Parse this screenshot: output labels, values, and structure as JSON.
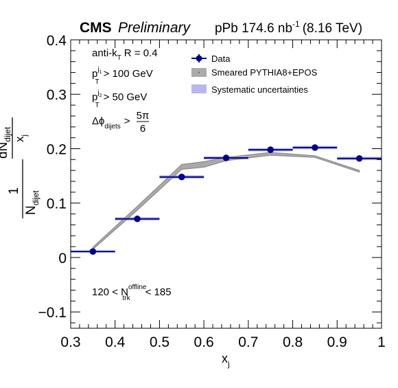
{
  "header": {
    "experiment": "CMS",
    "status": "Preliminary",
    "lumi_prefix": "pPb 174.6 nb",
    "lumi_exp": "-1",
    "energy": "(8.16 TeV)"
  },
  "annotations": {
    "jet_algo": "anti-k",
    "jet_algo_sub": "T",
    "jet_radius": "R = 0.4",
    "lead_pt_p": "p",
    "lead_pt_sup": "j",
    "lead_pt_sup2": "1",
    "lead_pt_sub": "T",
    "lead_pt_cut": "> 100 GeV",
    "sublead_pt_p": "p",
    "sublead_pt_sup": "j",
    "sublead_pt_sup2": "2",
    "sublead_pt_sub": "T",
    "sublead_pt_cut": "> 50 GeV",
    "dphi": "Δϕ",
    "dphi_sub": "dijets",
    "dphi_gt": ">",
    "dphi_num": "5π",
    "dphi_den": "6",
    "mult_low": "120 < N",
    "mult_sup": "offline",
    "mult_sub": "trk",
    "mult_high": "< 185"
  },
  "axes": {
    "xlabel": "x",
    "xlabel_sub": "j",
    "ylabel_one": "1",
    "ylabel_N": "N",
    "ylabel_N_sub": "dijet",
    "ylabel_dN": "dN",
    "ylabel_dN_sub": "dijet",
    "ylabel_dx": "x",
    "ylabel_dx_sub": "j"
  },
  "colors": {
    "data": "#00008b",
    "model_band": "#aaaaaa",
    "model_line": "#8c8c8c",
    "syst_band": "#b8b8ea"
  },
  "chart_data": {
    "type": "scatter",
    "xlim": [
      0.3,
      1.0
    ],
    "ylim": [
      -0.13,
      0.4
    ],
    "x_ticks": [
      0.3,
      0.4,
      0.5,
      0.6,
      0.7,
      0.8,
      0.9,
      1.0
    ],
    "x_tick_labels": [
      "0.3",
      "0.4",
      "0.5",
      "0.6",
      "0.7",
      "0.8",
      "0.9",
      "1"
    ],
    "y_ticks": [
      -0.1,
      0,
      0.1,
      0.2,
      0.3,
      0.4
    ],
    "y_tick_labels": [
      "−0.1",
      "0",
      "0.1",
      "0.2",
      "0.3",
      "0.4"
    ],
    "grid": false,
    "legend_position": "top-right",
    "legend": [
      "Data",
      "Smeared PYTHIA8+EPOS",
      "Systematic uncertainties"
    ],
    "series": [
      {
        "name": "Data",
        "x": [
          0.35,
          0.45,
          0.55,
          0.65,
          0.75,
          0.85,
          0.95
        ],
        "x_low": [
          0.3,
          0.4,
          0.5,
          0.6,
          0.7,
          0.8,
          0.9
        ],
        "x_high": [
          0.4,
          0.5,
          0.6,
          0.7,
          0.8,
          0.9,
          1.0
        ],
        "y": [
          0.011,
          0.071,
          0.148,
          0.183,
          0.198,
          0.202,
          0.182
        ],
        "syst": [
          0.002,
          0.003,
          0.003,
          0.003,
          0.003,
          0.003,
          0.003
        ]
      },
      {
        "name": "Smeared PYTHIA8+EPOS",
        "x": [
          0.35,
          0.45,
          0.55,
          0.6,
          0.65,
          0.75,
          0.85,
          0.95
        ],
        "y_low": [
          0.015,
          0.087,
          0.162,
          0.166,
          0.178,
          0.188,
          0.184,
          0.157
        ],
        "y_high": [
          0.019,
          0.094,
          0.171,
          0.176,
          0.184,
          0.193,
          0.187,
          0.16
        ]
      }
    ]
  }
}
